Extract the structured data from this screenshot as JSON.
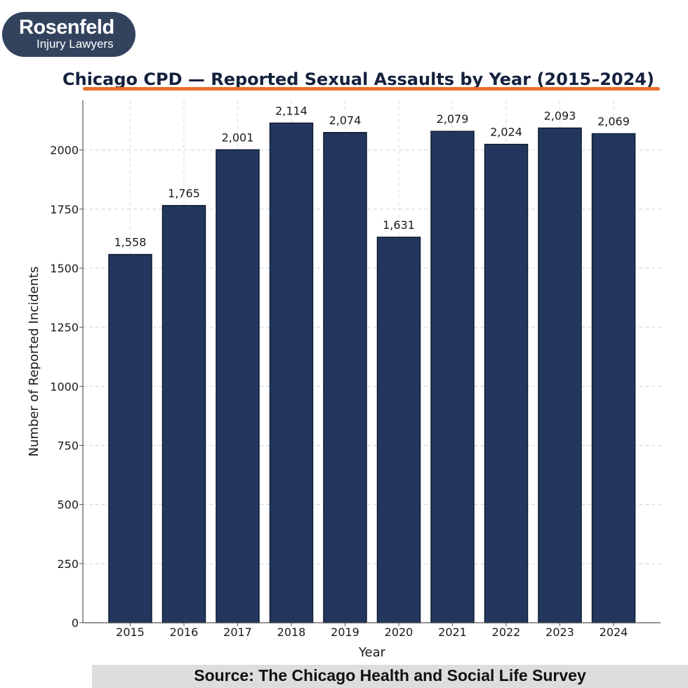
{
  "logo": {
    "name": "Rosenfeld",
    "subtitle": "Injury Lawyers"
  },
  "source": "Source: The Chicago Health and Social Life Survey",
  "colors": {
    "bar": "#23375e",
    "accent": "#e8702a",
    "logo_bg": "#33435e"
  },
  "chart_data": {
    "type": "bar",
    "title": "Chicago CPD — Reported Sexual Assaults by Year (2015–2024)",
    "xlabel": "Year",
    "ylabel": "Number of Reported Incidents",
    "categories": [
      "2015",
      "2016",
      "2017",
      "2018",
      "2019",
      "2020",
      "2021",
      "2022",
      "2023",
      "2024"
    ],
    "values": [
      1558,
      1765,
      2001,
      2114,
      2074,
      1631,
      2079,
      2024,
      2093,
      2069
    ],
    "value_labels": [
      "1,558",
      "1,765",
      "2,001",
      "2,114",
      "2,074",
      "1,631",
      "2,079",
      "2,024",
      "2,093",
      "2,069"
    ],
    "yticks": [
      0,
      250,
      500,
      750,
      1000,
      1250,
      1500,
      1750,
      2000
    ],
    "ylim": [
      0,
      2210
    ],
    "grid": true
  }
}
